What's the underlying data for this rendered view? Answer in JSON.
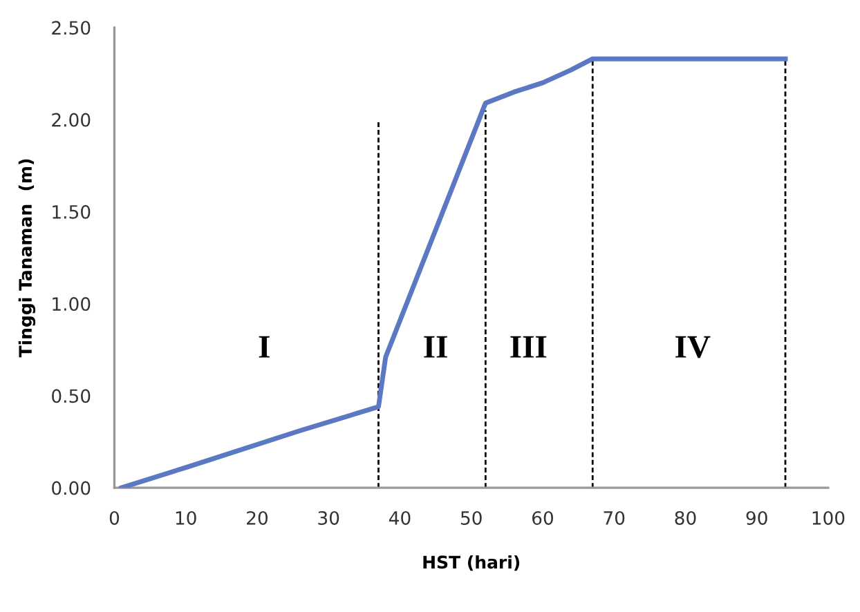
{
  "chart_data": {
    "type": "line",
    "xlabel": "HST (hari)",
    "ylabel": "Tinggi Tanaman  (m)",
    "xlim": [
      0,
      100
    ],
    "xticks": [
      0,
      10,
      20,
      30,
      40,
      50,
      60,
      70,
      80,
      90,
      100
    ],
    "ylim": [
      0,
      2.5
    ],
    "yticks": [
      {
        "value": 0,
        "label": "0.00"
      },
      {
        "value": 0.5,
        "label": "0.50"
      },
      {
        "value": 1,
        "label": "1.00"
      },
      {
        "value": 1.5,
        "label": "1.50"
      },
      {
        "value": 2,
        "label": "2.00"
      },
      {
        "value": 2.5,
        "label": "2.50"
      }
    ],
    "grid": false,
    "legend": false,
    "marker": "none",
    "series": [
      {
        "color": "#5b78c2",
        "line_style": "solid",
        "x": [
          1,
          10,
          26,
          37,
          38,
          52,
          56,
          60,
          64,
          67,
          94
        ],
        "values": [
          0,
          0.11,
          0.31,
          0.44,
          0.71,
          2.09,
          2.15,
          2.2,
          2.27,
          2.33,
          2.33
        ]
      },
      {
        "color": "#000000",
        "line_style": "dashed",
        "x": [
          37,
          37
        ],
        "values": [
          0,
          2.0
        ]
      },
      {
        "color": "#000000",
        "line_style": "dashed",
        "x": [
          52,
          52
        ],
        "values": [
          0,
          2.05
        ]
      },
      {
        "color": "#000000",
        "line_style": "dashed",
        "x": [
          67,
          67
        ],
        "values": [
          0,
          2.33
        ]
      },
      {
        "color": "#000000",
        "line_style": "dashed",
        "x": [
          94,
          94
        ],
        "values": [
          0,
          2.33
        ]
      }
    ],
    "annotations": [
      "I",
      "II",
      "III",
      "IV"
    ]
  }
}
